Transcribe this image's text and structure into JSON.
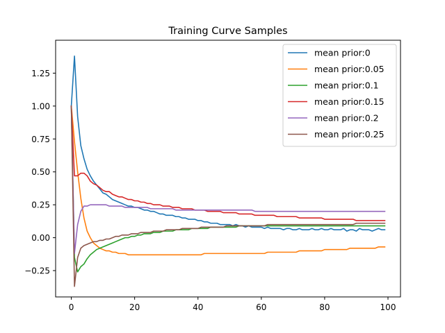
{
  "chart_data": {
    "type": "line",
    "title": "Training Curve Samples",
    "xlabel": "",
    "ylabel": "",
    "xlim": [
      -4.95,
      103.95
    ],
    "ylim": [
      -0.45,
      1.5
    ],
    "xticks": [
      0,
      20,
      40,
      60,
      80,
      100
    ],
    "yticks": [
      -0.25,
      0.0,
      0.25,
      0.5,
      0.75,
      1.0,
      1.25
    ],
    "ytick_labels": [
      "−0.25",
      "0.00",
      "0.25",
      "0.50",
      "0.75",
      "1.00",
      "1.25"
    ],
    "xtick_labels": [
      "0",
      "20",
      "40",
      "60",
      "80",
      "100"
    ],
    "grid": false,
    "legend": "top-right",
    "x": [
      0,
      1,
      2,
      3,
      4,
      5,
      6,
      7,
      8,
      9,
      10,
      11,
      12,
      13,
      14,
      15,
      16,
      17,
      18,
      19,
      20,
      21,
      22,
      23,
      24,
      25,
      26,
      27,
      28,
      29,
      30,
      31,
      32,
      33,
      34,
      35,
      36,
      37,
      38,
      39,
      40,
      41,
      42,
      43,
      44,
      45,
      46,
      47,
      48,
      49,
      50,
      51,
      52,
      53,
      54,
      55,
      56,
      57,
      58,
      59,
      60,
      61,
      62,
      63,
      64,
      65,
      66,
      67,
      68,
      69,
      70,
      71,
      72,
      73,
      74,
      75,
      76,
      77,
      78,
      79,
      80,
      81,
      82,
      83,
      84,
      85,
      86,
      87,
      88,
      89,
      90,
      91,
      92,
      93,
      94,
      95,
      96,
      97,
      98,
      99
    ],
    "series": [
      {
        "name": "mean prior:0",
        "color": "#1f77b4",
        "values": [
          1.0,
          1.38,
          0.92,
          0.7,
          0.6,
          0.52,
          0.47,
          0.43,
          0.4,
          0.37,
          0.34,
          0.33,
          0.31,
          0.29,
          0.28,
          0.27,
          0.26,
          0.25,
          0.24,
          0.24,
          0.23,
          0.23,
          0.22,
          0.21,
          0.21,
          0.2,
          0.2,
          0.19,
          0.18,
          0.18,
          0.17,
          0.17,
          0.17,
          0.16,
          0.16,
          0.15,
          0.15,
          0.14,
          0.14,
          0.14,
          0.13,
          0.13,
          0.12,
          0.12,
          0.11,
          0.11,
          0.11,
          0.1,
          0.1,
          0.1,
          0.1,
          0.09,
          0.1,
          0.09,
          0.09,
          0.08,
          0.09,
          0.08,
          0.08,
          0.08,
          0.08,
          0.07,
          0.08,
          0.07,
          0.07,
          0.07,
          0.07,
          0.06,
          0.07,
          0.07,
          0.06,
          0.06,
          0.07,
          0.06,
          0.06,
          0.06,
          0.07,
          0.06,
          0.06,
          0.07,
          0.06,
          0.06,
          0.07,
          0.06,
          0.06,
          0.06,
          0.07,
          0.05,
          0.06,
          0.06,
          0.05,
          0.07,
          0.06,
          0.06,
          0.06,
          0.05,
          0.06,
          0.07,
          0.06,
          0.06
        ]
      },
      {
        "name": "mean prior:0.05",
        "color": "#ff7f0e",
        "values": [
          1.0,
          0.73,
          0.5,
          0.3,
          0.15,
          0.05,
          0.0,
          -0.04,
          -0.06,
          -0.08,
          -0.09,
          -0.1,
          -0.1,
          -0.11,
          -0.11,
          -0.12,
          -0.12,
          -0.12,
          -0.13,
          -0.13,
          -0.13,
          -0.13,
          -0.13,
          -0.13,
          -0.13,
          -0.13,
          -0.13,
          -0.13,
          -0.13,
          -0.13,
          -0.13,
          -0.13,
          -0.13,
          -0.13,
          -0.13,
          -0.13,
          -0.13,
          -0.13,
          -0.13,
          -0.13,
          -0.13,
          -0.13,
          -0.12,
          -0.12,
          -0.12,
          -0.12,
          -0.12,
          -0.12,
          -0.12,
          -0.12,
          -0.12,
          -0.12,
          -0.12,
          -0.12,
          -0.12,
          -0.12,
          -0.12,
          -0.12,
          -0.12,
          -0.12,
          -0.12,
          -0.12,
          -0.11,
          -0.11,
          -0.11,
          -0.11,
          -0.11,
          -0.11,
          -0.11,
          -0.11,
          -0.11,
          -0.11,
          -0.1,
          -0.1,
          -0.1,
          -0.1,
          -0.1,
          -0.1,
          -0.1,
          -0.1,
          -0.09,
          -0.09,
          -0.09,
          -0.09,
          -0.09,
          -0.09,
          -0.09,
          -0.09,
          -0.08,
          -0.08,
          -0.08,
          -0.08,
          -0.08,
          -0.08,
          -0.08,
          -0.08,
          -0.08,
          -0.07,
          -0.07,
          -0.07
        ]
      },
      {
        "name": "mean prior:0.1",
        "color": "#2ca02c",
        "values": [
          1.0,
          -0.15,
          -0.26,
          -0.22,
          -0.2,
          -0.16,
          -0.13,
          -0.11,
          -0.09,
          -0.08,
          -0.07,
          -0.06,
          -0.05,
          -0.04,
          -0.03,
          -0.02,
          -0.01,
          0.0,
          0.0,
          0.01,
          0.01,
          0.02,
          0.02,
          0.03,
          0.03,
          0.03,
          0.04,
          0.04,
          0.04,
          0.05,
          0.05,
          0.05,
          0.05,
          0.06,
          0.06,
          0.06,
          0.06,
          0.06,
          0.07,
          0.07,
          0.07,
          0.07,
          0.07,
          0.07,
          0.08,
          0.08,
          0.08,
          0.08,
          0.08,
          0.08,
          0.08,
          0.08,
          0.08,
          0.09,
          0.09,
          0.09,
          0.09,
          0.09,
          0.09,
          0.09,
          0.09,
          0.09,
          0.09,
          0.09,
          0.09,
          0.09,
          0.09,
          0.09,
          0.09,
          0.09,
          0.09,
          0.09,
          0.09,
          0.09,
          0.09,
          0.09,
          0.09,
          0.09,
          0.09,
          0.09,
          0.09,
          0.09,
          0.09,
          0.09,
          0.09,
          0.09,
          0.09,
          0.09,
          0.09,
          0.09,
          0.09,
          0.09,
          0.09,
          0.09,
          0.09,
          0.09,
          0.09,
          0.09,
          0.09,
          0.09
        ]
      },
      {
        "name": "mean prior:0.15",
        "color": "#d62728",
        "values": [
          1.0,
          0.47,
          0.47,
          0.49,
          0.49,
          0.47,
          0.43,
          0.41,
          0.4,
          0.38,
          0.36,
          0.35,
          0.35,
          0.33,
          0.32,
          0.31,
          0.31,
          0.3,
          0.29,
          0.29,
          0.28,
          0.28,
          0.27,
          0.27,
          0.26,
          0.26,
          0.25,
          0.25,
          0.25,
          0.24,
          0.24,
          0.24,
          0.23,
          0.23,
          0.23,
          0.22,
          0.22,
          0.22,
          0.22,
          0.21,
          0.21,
          0.21,
          0.21,
          0.2,
          0.2,
          0.2,
          0.2,
          0.2,
          0.19,
          0.19,
          0.19,
          0.19,
          0.19,
          0.18,
          0.18,
          0.18,
          0.18,
          0.18,
          0.17,
          0.17,
          0.17,
          0.17,
          0.17,
          0.17,
          0.17,
          0.16,
          0.16,
          0.16,
          0.16,
          0.16,
          0.16,
          0.16,
          0.15,
          0.15,
          0.15,
          0.15,
          0.15,
          0.15,
          0.15,
          0.15,
          0.14,
          0.14,
          0.14,
          0.14,
          0.14,
          0.14,
          0.14,
          0.14,
          0.14,
          0.14,
          0.13,
          0.13,
          0.13,
          0.13,
          0.13,
          0.13,
          0.13,
          0.13,
          0.13,
          0.13
        ]
      },
      {
        "name": "mean prior:0.2",
        "color": "#9467bd",
        "values": [
          1.0,
          -0.12,
          0.1,
          0.2,
          0.24,
          0.24,
          0.25,
          0.25,
          0.25,
          0.25,
          0.25,
          0.25,
          0.24,
          0.24,
          0.24,
          0.24,
          0.24,
          0.23,
          0.23,
          0.23,
          0.23,
          0.23,
          0.23,
          0.23,
          0.23,
          0.22,
          0.22,
          0.22,
          0.22,
          0.22,
          0.22,
          0.22,
          0.22,
          0.21,
          0.21,
          0.21,
          0.21,
          0.21,
          0.21,
          0.21,
          0.21,
          0.21,
          0.21,
          0.21,
          0.21,
          0.21,
          0.21,
          0.21,
          0.21,
          0.21,
          0.21,
          0.21,
          0.21,
          0.21,
          0.21,
          0.21,
          0.21,
          0.21,
          0.2,
          0.2,
          0.2,
          0.2,
          0.2,
          0.2,
          0.2,
          0.2,
          0.2,
          0.2,
          0.2,
          0.2,
          0.2,
          0.2,
          0.2,
          0.2,
          0.2,
          0.2,
          0.2,
          0.2,
          0.2,
          0.2,
          0.2,
          0.2,
          0.2,
          0.2,
          0.2,
          0.2,
          0.2,
          0.2,
          0.2,
          0.2,
          0.2,
          0.2,
          0.2,
          0.2,
          0.2,
          0.2,
          0.2,
          0.2,
          0.2,
          0.2
        ]
      },
      {
        "name": "mean prior:0.25",
        "color": "#8c564b",
        "values": [
          1.0,
          -0.37,
          -0.15,
          -0.08,
          -0.06,
          -0.05,
          -0.04,
          -0.03,
          -0.03,
          -0.02,
          -0.02,
          -0.01,
          -0.01,
          0.0,
          0.01,
          0.01,
          0.02,
          0.02,
          0.02,
          0.03,
          0.03,
          0.03,
          0.04,
          0.04,
          0.04,
          0.04,
          0.05,
          0.05,
          0.05,
          0.05,
          0.06,
          0.06,
          0.06,
          0.06,
          0.06,
          0.07,
          0.07,
          0.07,
          0.07,
          0.07,
          0.07,
          0.08,
          0.08,
          0.08,
          0.08,
          0.08,
          0.08,
          0.08,
          0.08,
          0.09,
          0.09,
          0.09,
          0.09,
          0.09,
          0.09,
          0.09,
          0.09,
          0.09,
          0.09,
          0.09,
          0.09,
          0.09,
          0.1,
          0.1,
          0.1,
          0.1,
          0.1,
          0.1,
          0.1,
          0.1,
          0.1,
          0.1,
          0.1,
          0.1,
          0.1,
          0.1,
          0.1,
          0.1,
          0.1,
          0.1,
          0.1,
          0.1,
          0.1,
          0.1,
          0.1,
          0.1,
          0.1,
          0.1,
          0.1,
          0.1,
          0.11,
          0.11,
          0.11,
          0.11,
          0.11,
          0.11,
          0.11,
          0.11,
          0.11,
          0.11
        ]
      }
    ]
  }
}
